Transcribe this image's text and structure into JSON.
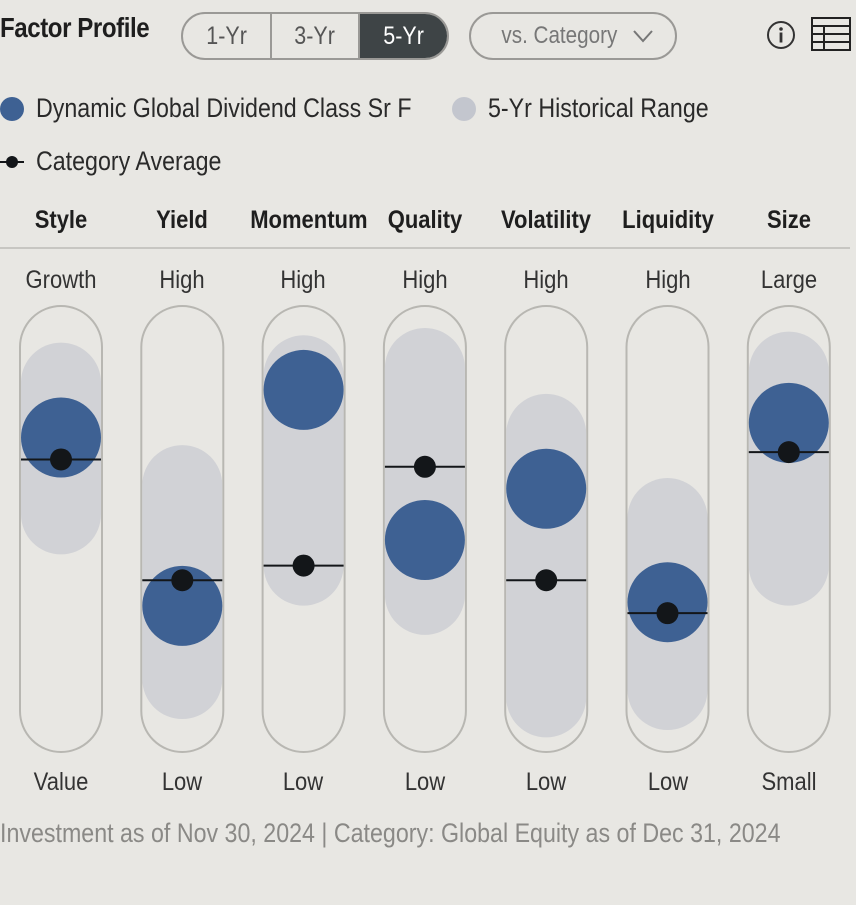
{
  "header": {
    "title": "Factor Profile",
    "periods": [
      "1-Yr",
      "3-Yr",
      "5-Yr"
    ],
    "active_period": "5-Yr",
    "compare_label": "vs. Category",
    "icons": [
      "info-icon",
      "table-icon"
    ]
  },
  "legend": {
    "fund": "Dynamic Global Dividend Class Sr F",
    "range": "5-Yr Historical Range",
    "average": "Category Average"
  },
  "colors": {
    "fund": "#3e6193",
    "range": "#d1d2d6",
    "average": "#131619",
    "track_border": "#b8b7b2",
    "active_button": "#3e4446"
  },
  "chart_data": {
    "type": "dot-range",
    "scale": [
      0,
      100
    ],
    "factors": [
      {
        "name": "Style",
        "high": "Growth",
        "low": "Value",
        "fund": 75,
        "avg": 69,
        "range": [
          54,
          90
        ]
      },
      {
        "name": "Yield",
        "high": "High",
        "low": "Low",
        "fund": 29,
        "avg": 36,
        "range": [
          9,
          62
        ]
      },
      {
        "name": "Momentum",
        "high": "High",
        "low": "Low",
        "fund": 88,
        "avg": 40,
        "range": [
          40,
          92
        ]
      },
      {
        "name": "Quality",
        "high": "High",
        "low": "Low",
        "fund": 47,
        "avg": 67,
        "range": [
          32,
          94
        ]
      },
      {
        "name": "Volatility",
        "high": "High",
        "low": "Low",
        "fund": 61,
        "avg": 36,
        "range": [
          4,
          76
        ]
      },
      {
        "name": "Liquidity",
        "high": "High",
        "low": "Low",
        "fund": 30,
        "avg": 27,
        "range": [
          6,
          53
        ]
      },
      {
        "name": "Size",
        "high": "Large",
        "low": "Small",
        "fund": 79,
        "avg": 71,
        "range": [
          40,
          93
        ]
      }
    ]
  },
  "footnote": "Investment as of Nov 30, 2024 | Category: Global Equity as of Dec 31, 2024"
}
